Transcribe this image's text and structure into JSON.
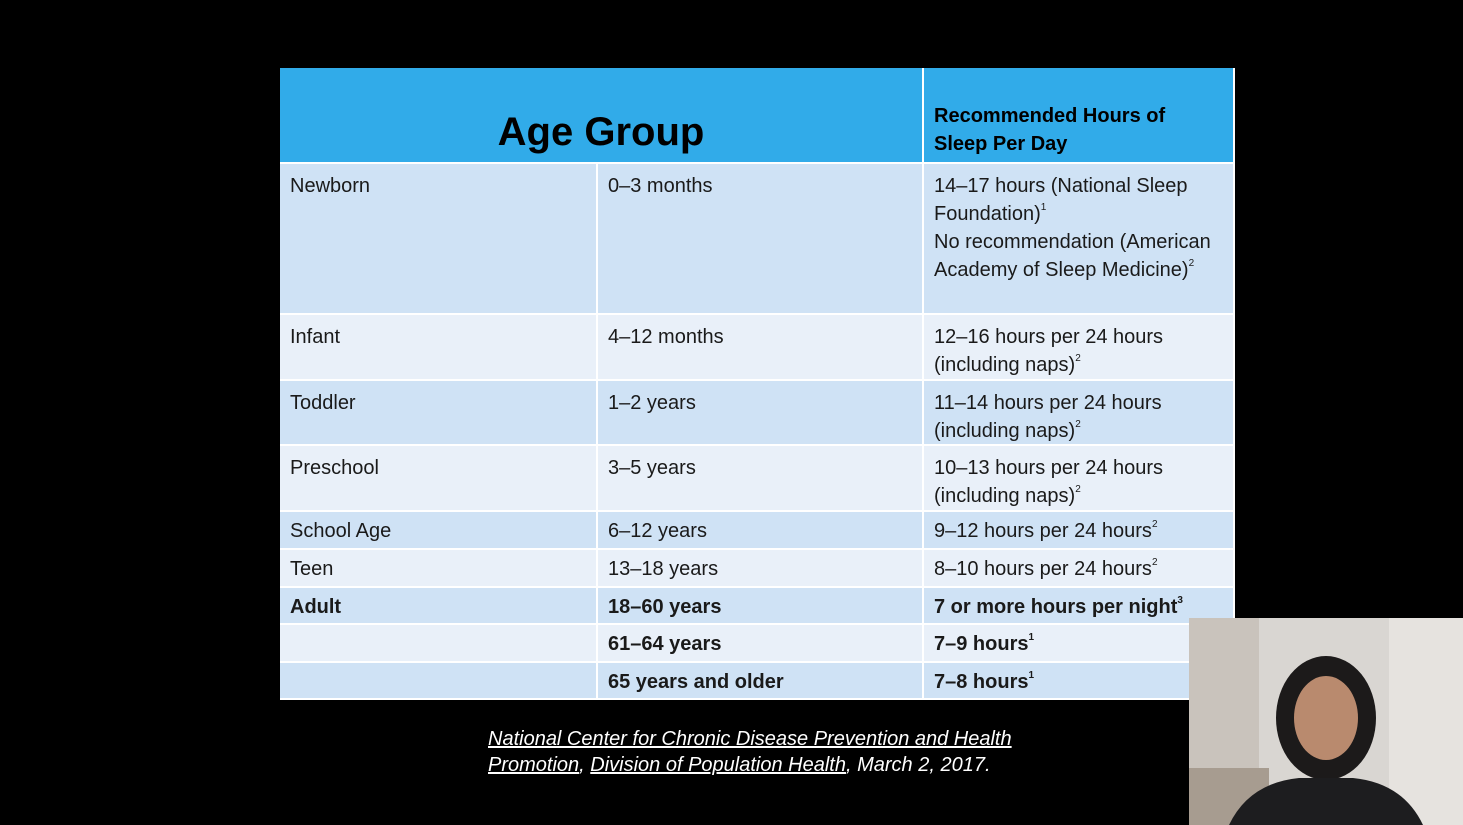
{
  "table": {
    "header": [
      "Age Group",
      "Recommended Hours of Sleep Per Day"
    ],
    "rows": [
      {
        "group": "Newborn",
        "age": "0–3 months",
        "hours": [
          {
            "text": "14–17 hours (National Sleep Foundation)",
            "sup": "1"
          },
          {
            "text": "No recommendation (American Academy of Sleep Medicine)",
            "sup": "2"
          }
        ]
      },
      {
        "group": "Infant",
        "age": "4–12 months",
        "hours": [
          {
            "text": "12–16 hours per 24 hours (including naps)",
            "sup": "2"
          }
        ]
      },
      {
        "group": "Toddler",
        "age": "1–2 years",
        "hours": [
          {
            "text": "11–14 hours per 24 hours (including naps)",
            "sup": "2"
          }
        ]
      },
      {
        "group": "Preschool",
        "age": "3–5 years",
        "hours": [
          {
            "text": "10–13 hours per 24 hours (including naps)",
            "sup": "2"
          }
        ]
      },
      {
        "group": "School Age",
        "age": "6–12 years",
        "hours": [
          {
            "text": "9–12 hours per 24 hours",
            "sup": "2"
          }
        ]
      },
      {
        "group": "Teen",
        "age": "13–18 years",
        "hours": [
          {
            "text": "8–10 hours per 24 hours",
            "sup": "2"
          }
        ]
      },
      {
        "group": "Adult",
        "age": "18–60 years",
        "hours": [
          {
            "text": "7 or more hours per night",
            "sup": "3"
          }
        ],
        "bold": true
      },
      {
        "age": "61–64 years",
        "hours": [
          {
            "text": "7–9 hours",
            "sup": "1"
          }
        ],
        "bold": true
      },
      {
        "age": "65 years and older",
        "hours": [
          {
            "text": "7–8 hours",
            "sup": "1"
          }
        ],
        "bold": true
      }
    ]
  },
  "citation": [
    {
      "text": "National Center for Chronic Disease Prevention and Health Promotion",
      "underline": true
    },
    {
      "text": ", "
    },
    {
      "text": "Division of Population Health",
      "underline": true
    },
    {
      "text": ", March 2, 2017."
    }
  ]
}
